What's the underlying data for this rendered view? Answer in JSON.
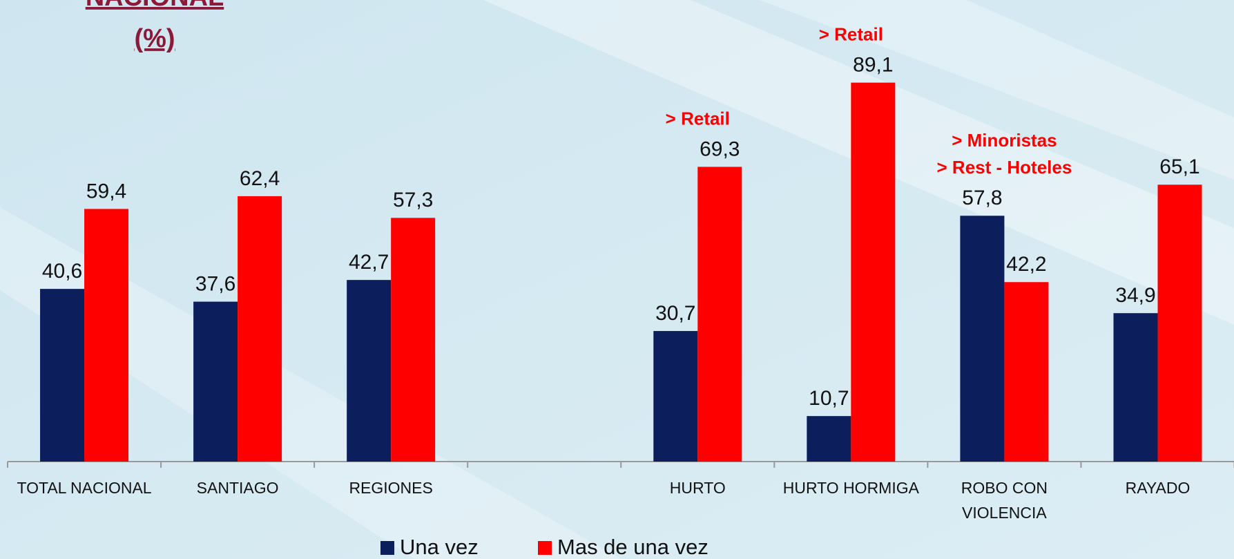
{
  "chart_data": {
    "type": "bar",
    "title_lines": [
      "NACIONAL",
      "(%)"
    ],
    "categories": [
      "TOTAL NACIONAL",
      "SANTIAGO",
      "REGIONES",
      null,
      "HURTO",
      "HURTO HORMIGA",
      "ROBO CON VIOLENCIA",
      "RAYADO"
    ],
    "series": [
      {
        "name": "Una vez",
        "color": "#0c1f5c",
        "values": [
          40.6,
          37.6,
          42.7,
          null,
          30.7,
          10.7,
          57.8,
          34.9
        ],
        "value_labels": [
          "40,6",
          "37,6",
          "42,7",
          null,
          "30,7",
          "10,7",
          "57,8",
          "34,9"
        ]
      },
      {
        "name": "Mas de una vez",
        "color": "#ff0000",
        "values": [
          59.4,
          62.4,
          57.3,
          null,
          69.3,
          89.1,
          42.2,
          65.1
        ],
        "value_labels": [
          "59,4",
          "62,4",
          "57,3",
          null,
          "69,3",
          "89,1",
          "42,2",
          "65,1"
        ]
      }
    ],
    "annotations": [
      {
        "category": "HURTO",
        "lines": [
          "> Retail"
        ]
      },
      {
        "category": "HURTO HORMIGA",
        "lines": [
          "> Retail"
        ]
      },
      {
        "category": "ROBO CON VIOLENCIA",
        "lines": [
          "> Minoristas",
          "> Rest - Hoteles"
        ]
      }
    ],
    "ylim": [
      0,
      100
    ],
    "legend": "bottom"
  }
}
